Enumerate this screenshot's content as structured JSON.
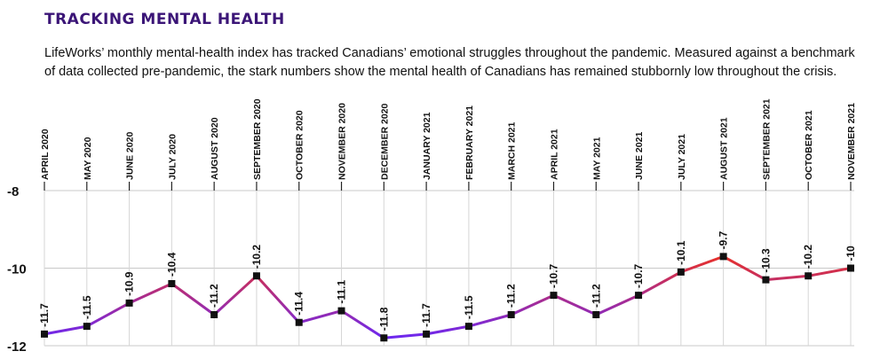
{
  "header": {
    "title": "TRACKING MENTAL HEALTH",
    "subtitle_line1": "LifeWorks’ monthly mental-health index has tracked Canadians’ emotional struggles throughout the pandemic. Measured against a benchmark",
    "subtitle_line2": "of data collected pre-pandemic, the stark numbers show the mental health of Canadians has remained stubbornly low throughout the crisis."
  },
  "chart_data": {
    "type": "line",
    "categories": [
      "APRIL 2020",
      "MAY 2020",
      "JUNE 2020",
      "JULY 2020",
      "AUGUST 2020",
      "SEPTEMBER 2020",
      "OCTOBER 2020",
      "NOVEMBER 2020",
      "DECEMBER 2020",
      "JANUARY 2021",
      "FEBRUARY 2021",
      "MARCH 2021",
      "APRIL 2021",
      "MAY 2021",
      "JUNE 2021",
      "JULY 2021",
      "AUGUST 2021",
      "SEPTEMBER 2021",
      "OCTOBER 2021",
      "NOVEMBER 2021"
    ],
    "values": [
      -11.7,
      -11.5,
      -10.9,
      -10.4,
      -11.2,
      -10.2,
      -11.4,
      -11.1,
      -11.8,
      -11.7,
      -11.5,
      -11.2,
      -10.7,
      -11.2,
      -10.7,
      -10.1,
      -9.7,
      -10.3,
      -10.2,
      -10
    ],
    "labels": [
      "-11.7",
      "-11.5",
      "-10.9",
      "-10.4",
      "-11.2",
      "-10.2",
      "-11.4",
      "-11.1",
      "-11.8",
      "-11.7",
      "-11.5",
      "-11.2",
      "-10.7",
      "-11.2",
      "-10.7",
      "-10.1",
      "-9.7",
      "-10.3",
      "-10.2",
      "-10"
    ],
    "ylim": [
      -12,
      -8
    ],
    "yticks": [
      "-8",
      "-10",
      "-12"
    ],
    "ytick_values": [
      -8,
      -10,
      -12
    ],
    "xlabel": "",
    "ylabel": "",
    "grid": true,
    "line_color_low": "#6d28f0",
    "line_color_high": "#e8312a",
    "marker_color": "#111111"
  }
}
